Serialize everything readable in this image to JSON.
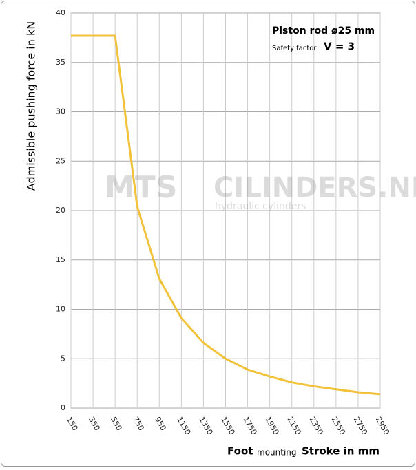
{
  "chart_data": {
    "type": "line",
    "y_label": "Admissible pushing force in kN",
    "x_label_main": "Foot",
    "x_label_small": "mounting",
    "x_label_unit": "Stroke in mm",
    "annotations": [
      "Piston rod ø25 mm",
      "Safety factor",
      "V = 3"
    ],
    "watermark": [
      "MTS",
      "CILINDERS.NL",
      "hydraulic  cylinders"
    ],
    "x": [
      150,
      350,
      550,
      750,
      950,
      1150,
      1350,
      1550,
      1750,
      1950,
      2150,
      2350,
      2550,
      2750,
      2950
    ],
    "series": [
      {
        "name": "Piston rod ø25 mm",
        "color": "#f2c23a",
        "values": [
          37.7,
          37.7,
          37.7,
          20.4,
          13.1,
          9.1,
          6.6,
          5.0,
          3.9,
          3.2,
          2.6,
          2.2,
          1.9,
          1.6,
          1.4
        ]
      }
    ],
    "xlim": [
      150,
      2950
    ],
    "xticks": [
      150,
      350,
      550,
      750,
      950,
      1150,
      1350,
      1550,
      1750,
      1950,
      2150,
      2350,
      2550,
      2750,
      2950
    ],
    "ylim": [
      0,
      40
    ],
    "yticks": [
      0,
      5,
      10,
      15,
      20,
      25,
      30,
      35,
      40
    ],
    "grid": true
  }
}
